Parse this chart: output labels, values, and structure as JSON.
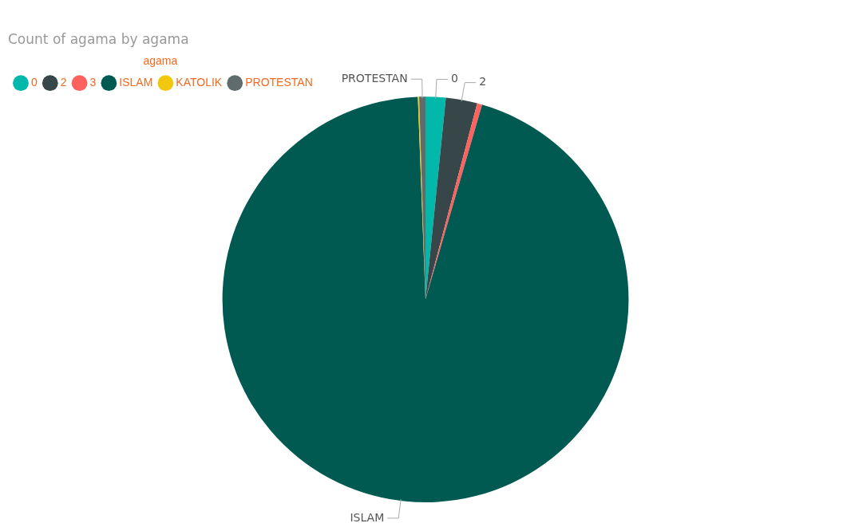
{
  "chart_data": {
    "type": "pie",
    "title": "Count of agama by agama",
    "legend_title": "agama",
    "legend": "top left",
    "categories": [
      "0",
      "2",
      "3",
      "ISLAM",
      "KATOLIK",
      "PROTESTAN"
    ],
    "values": [
      1.6,
      2.5,
      0.4,
      94.9,
      0.1,
      0.5
    ],
    "colors": [
      "#01b8aa",
      "#374649",
      "#fd625e",
      "#005a52",
      "#f2c80f",
      "#5f6b6d"
    ]
  }
}
